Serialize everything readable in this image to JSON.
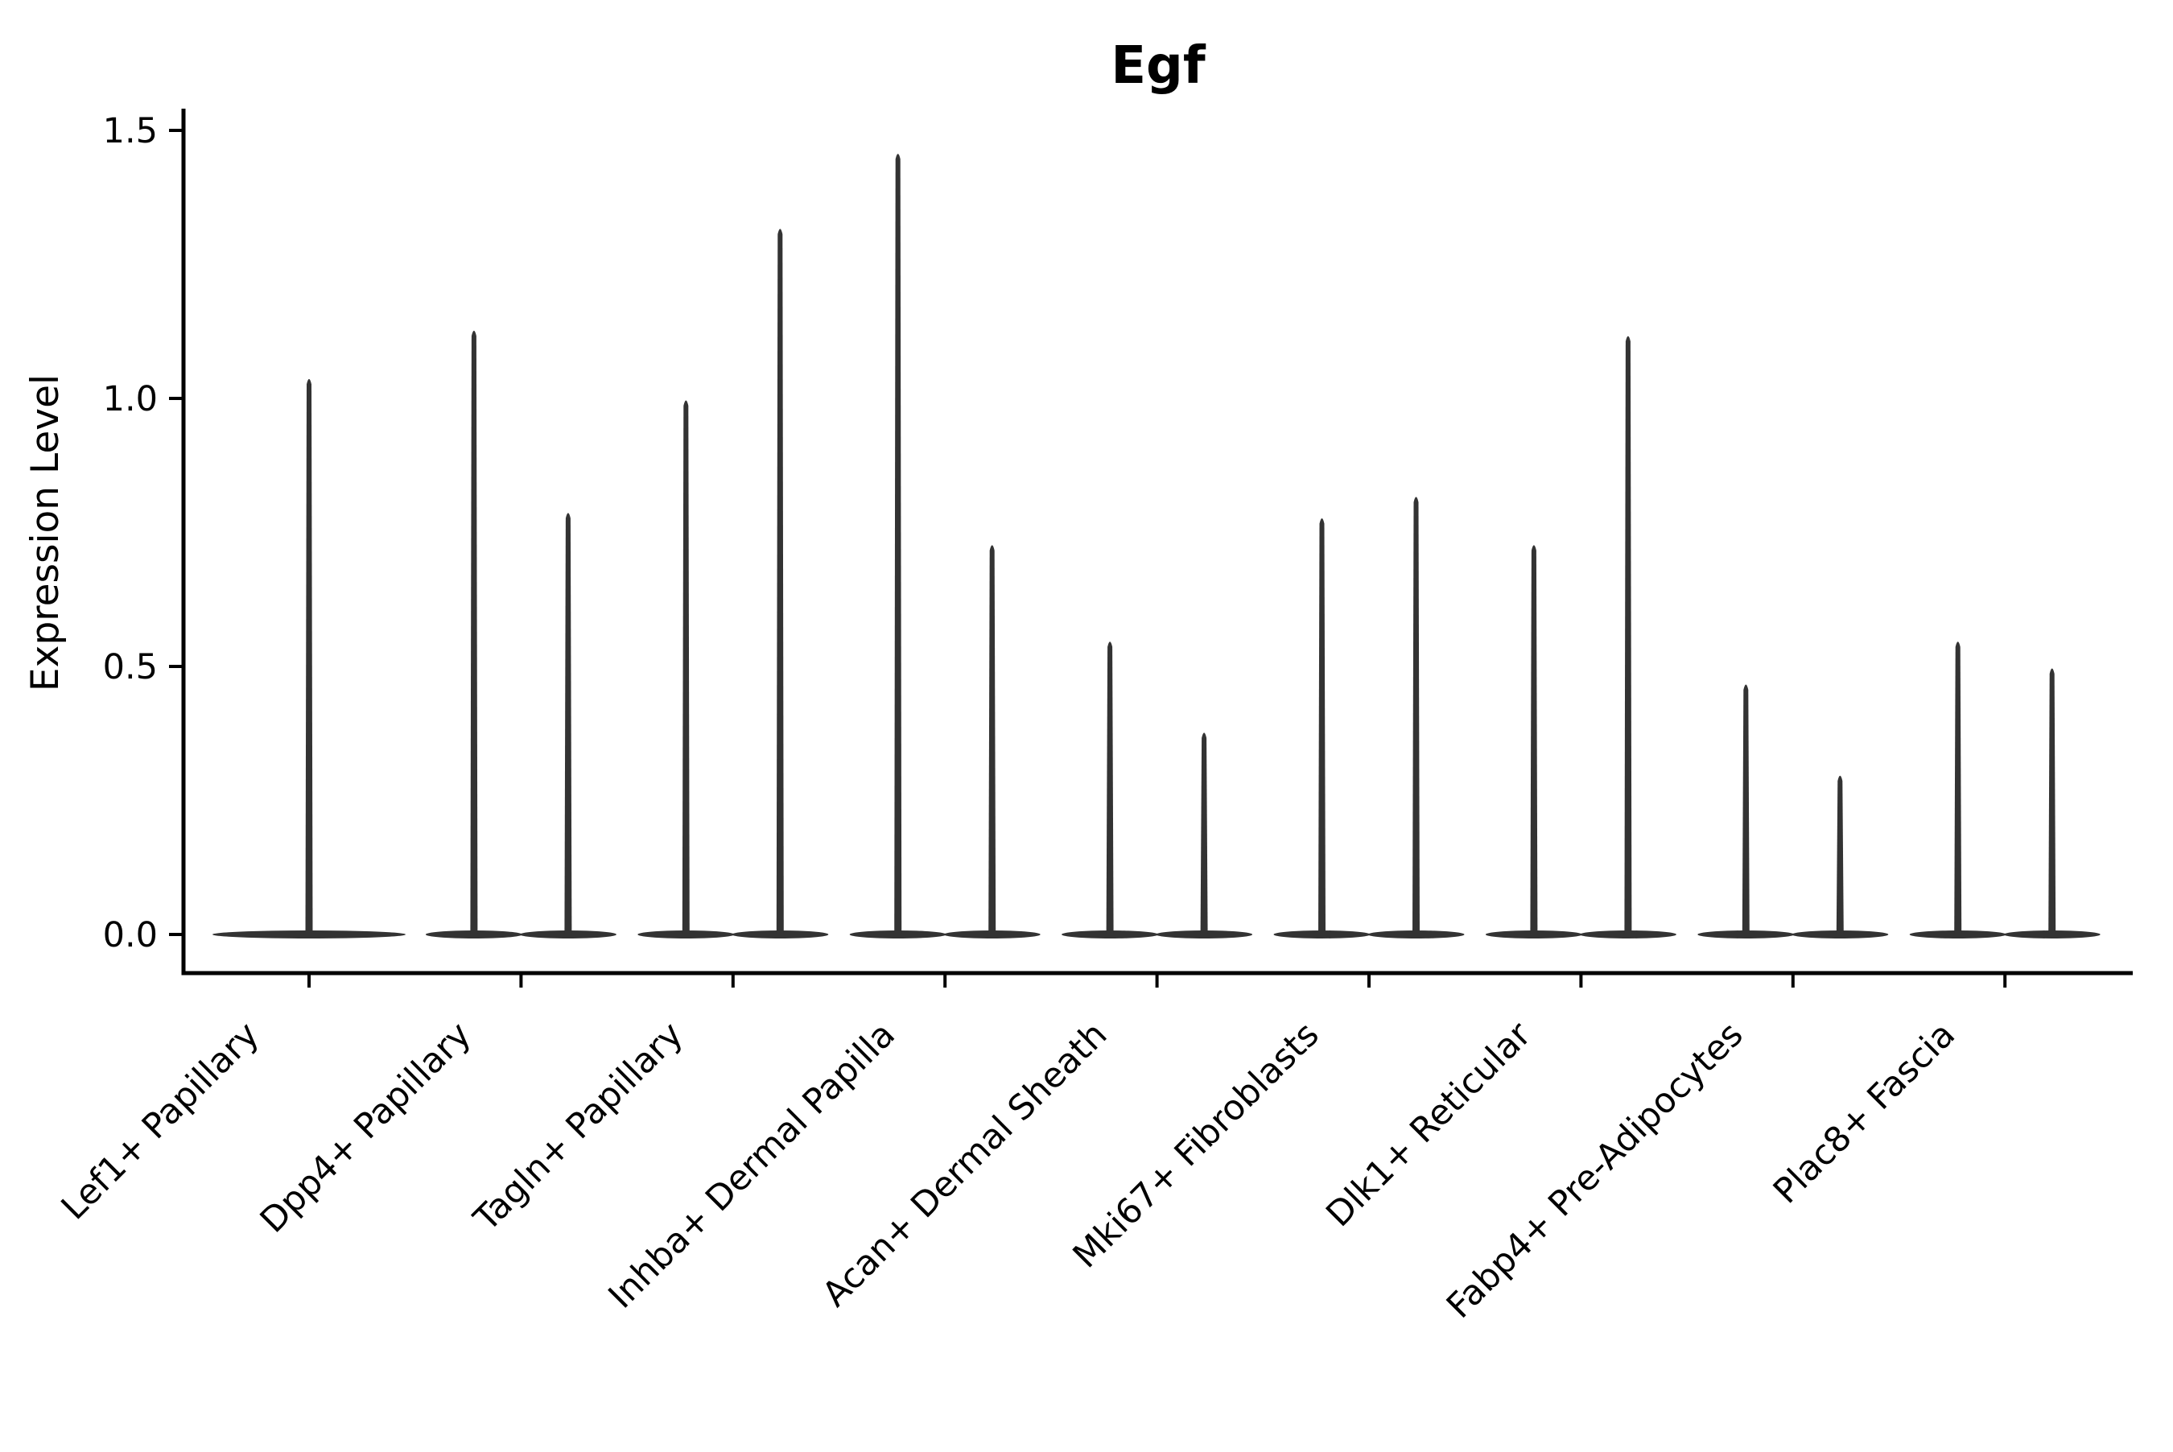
{
  "chart_data": {
    "type": "violin",
    "title": "Egf",
    "ylabel": "Expression Level",
    "xlabel": "",
    "ylim": [
      0.0,
      1.5
    ],
    "ytick_labels": [
      "0.0",
      "0.5",
      "1.0",
      "1.5"
    ],
    "ytick_values": [
      0.0,
      0.5,
      1.0,
      1.5
    ],
    "grid": "off",
    "legend": "none",
    "categories": [
      "Lef1+ Papillary",
      "Dpp4+ Papillary",
      "Tagln+ Papillary",
      "Inhba+ Dermal Papilla",
      "Acan+ Dermal Sheath",
      "Mki67+ Fibroblasts",
      "Dlk1+ Reticular",
      "Fabp4+ Pre-Adipocytes",
      "Plac8+ Fascia"
    ],
    "violins": [
      {
        "category": "Lef1+ Papillary",
        "maxima": [
          1.04
        ]
      },
      {
        "category": "Dpp4+ Papillary",
        "maxima": [
          1.13,
          0.79
        ]
      },
      {
        "category": "Tagln+ Papillary",
        "maxima": [
          1.0,
          1.32
        ]
      },
      {
        "category": "Inhba+ Dermal Papilla",
        "maxima": [
          1.46,
          0.73
        ]
      },
      {
        "category": "Acan+ Dermal Sheath",
        "maxima": [
          0.55,
          0.38
        ]
      },
      {
        "category": "Mki67+ Fibroblasts",
        "maxima": [
          0.78,
          0.82
        ]
      },
      {
        "category": "Dlk1+ Reticular",
        "maxima": [
          0.73,
          1.12
        ]
      },
      {
        "category": "Fabp4+ Pre-Adipocytes",
        "maxima": [
          0.47,
          0.3
        ]
      },
      {
        "category": "Plac8+ Fascia",
        "maxima": [
          0.55,
          0.5
        ]
      }
    ],
    "density_note": "Nearly all points at expression 0; each violin is a wide flat base at 0 with a thin spike to its maximum",
    "colors": {
      "violin": "#333333",
      "axis": "#000000",
      "text": "#000000",
      "background": "#ffffff"
    }
  }
}
